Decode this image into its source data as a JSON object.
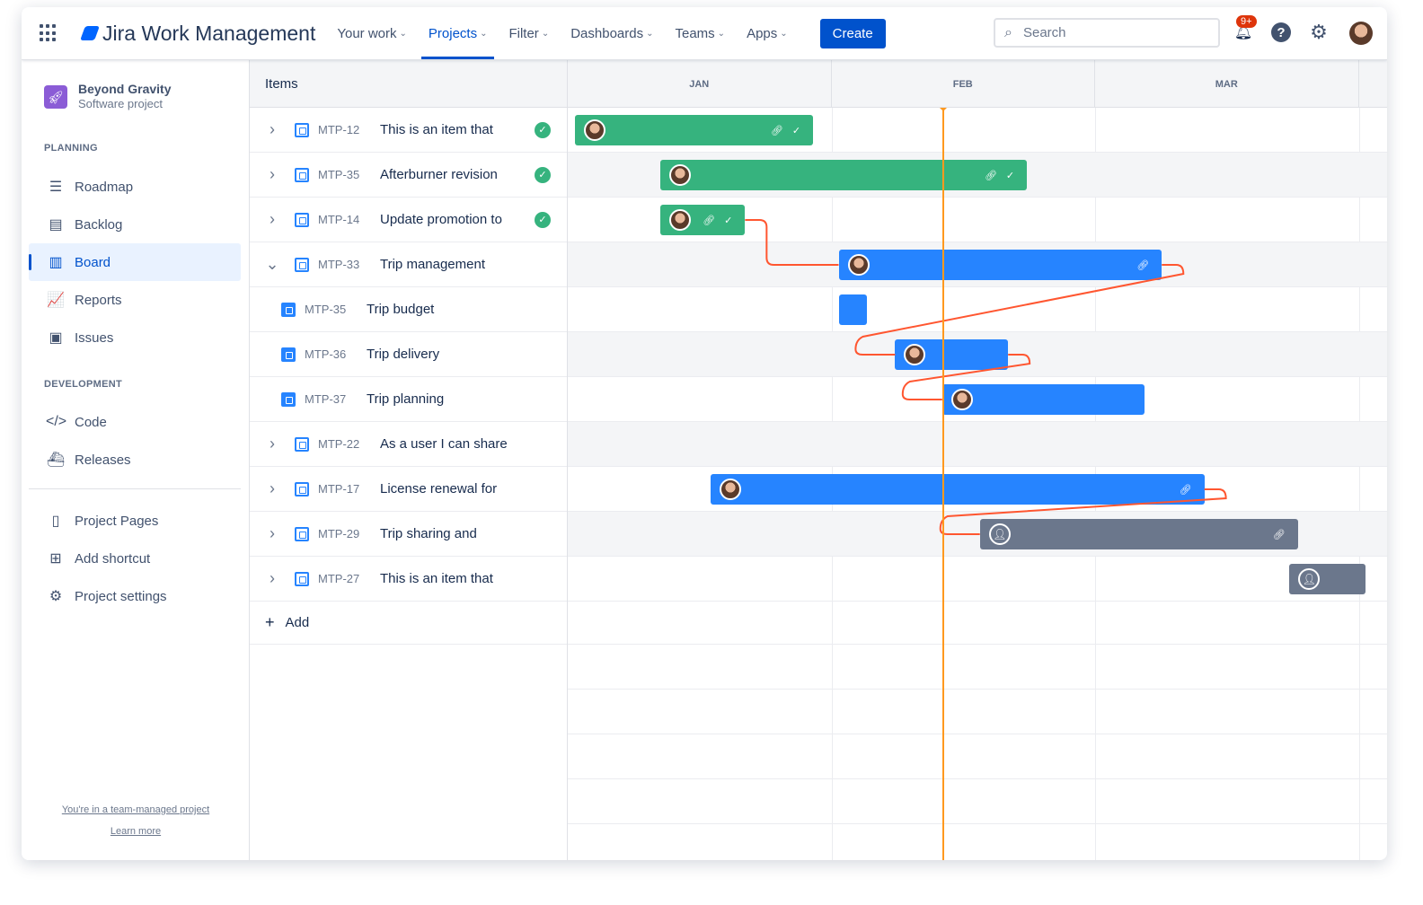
{
  "header": {
    "app_name": "Jira Work Management",
    "nav": [
      {
        "label": "Your work"
      },
      {
        "label": "Projects",
        "active": true
      },
      {
        "label": "Filter"
      },
      {
        "label": "Dashboards"
      },
      {
        "label": "Teams"
      },
      {
        "label": "Apps"
      }
    ],
    "create_label": "Create",
    "search_placeholder": "Search",
    "notification_count": "9+"
  },
  "sidebar": {
    "project_name": "Beyond Gravity",
    "project_type": "Software project",
    "planning_label": "PLANNING",
    "planning": [
      {
        "label": "Roadmap",
        "icon": "roadmap-icon",
        "glyph": "☰"
      },
      {
        "label": "Backlog",
        "icon": "backlog-icon",
        "glyph": "▤"
      },
      {
        "label": "Board",
        "icon": "board-icon",
        "glyph": "▥",
        "active": true
      },
      {
        "label": "Reports",
        "icon": "reports-icon",
        "glyph": "📈"
      },
      {
        "label": "Issues",
        "icon": "issues-icon",
        "glyph": "▣"
      }
    ],
    "development_label": "DEVELOPMENT",
    "development": [
      {
        "label": "Code",
        "icon": "code-icon",
        "glyph": "</>"
      },
      {
        "label": "Releases",
        "icon": "releases-icon",
        "glyph": "⛴"
      }
    ],
    "other": [
      {
        "label": "Project Pages",
        "icon": "pages-icon",
        "glyph": "▯"
      },
      {
        "label": "Add shortcut",
        "icon": "add-shortcut-icon",
        "glyph": "⊞"
      },
      {
        "label": "Project settings",
        "icon": "settings-icon",
        "glyph": "⚙"
      }
    ],
    "footer_text": "You're in a team-managed project",
    "learn_more": "Learn more"
  },
  "items_header": "Items",
  "months": [
    "JAN",
    "FEB",
    "MAR"
  ],
  "today": "Feb 12",
  "colors": {
    "done": "#36B37E",
    "in_progress": "#2684FF",
    "todo": "#6B778C",
    "dependency": "#FF5630",
    "today": "#FF991F"
  },
  "items": [
    {
      "key": "MTP-12",
      "title": "This is an item that",
      "done": true,
      "expand": "collapsed",
      "start": [
        1,
        1
      ],
      "end": [
        1,
        29
      ],
      "status": "done",
      "icons": [
        "link",
        "check"
      ]
    },
    {
      "key": "MTP-35",
      "title": "Afterburner revision",
      "done": true,
      "expand": "collapsed",
      "start": [
        1,
        11
      ],
      "end": [
        2,
        21
      ],
      "status": "done",
      "icons": [
        "link",
        "check"
      ]
    },
    {
      "key": "MTP-14",
      "title": "Update promotion to",
      "done": true,
      "expand": "collapsed",
      "start": [
        1,
        11
      ],
      "end": [
        1,
        21
      ],
      "status": "done",
      "icons": [
        "link",
        "check"
      ]
    },
    {
      "key": "MTP-33",
      "title": "Trip management",
      "expand": "expanded",
      "start": [
        2,
        1
      ],
      "end": [
        3,
        8
      ],
      "status": "in_progress",
      "icons": [
        "link"
      ]
    },
    {
      "key": "MTP-35",
      "title": "Trip budget",
      "child": true,
      "start": [
        2,
        1
      ],
      "end": [
        2,
        4
      ],
      "status": "in_progress",
      "noavatar": true,
      "icons": []
    },
    {
      "key": "MTP-36",
      "title": "Trip delivery",
      "child": true,
      "start": [
        2,
        7
      ],
      "end": [
        2,
        19
      ],
      "status": "in_progress",
      "icons": []
    },
    {
      "key": "MTP-37",
      "title": "Trip planning",
      "child": true,
      "start": [
        2,
        12
      ],
      "end": [
        3,
        6
      ],
      "status": "in_progress",
      "icons": []
    },
    {
      "key": "MTP-22",
      "title": "As a user I can share",
      "expand": "collapsed"
    },
    {
      "key": "MTP-17",
      "title": "License renewal for",
      "expand": "collapsed",
      "start": [
        1,
        17
      ],
      "end": [
        3,
        13
      ],
      "status": "in_progress",
      "icons": [
        "link"
      ]
    },
    {
      "key": "MTP-29",
      "title": "Trip sharing and",
      "expand": "collapsed",
      "start": [
        2,
        16
      ],
      "end": [
        3,
        24
      ],
      "status": "todo",
      "anon": true,
      "icons": [
        "link"
      ]
    },
    {
      "key": "MTP-27",
      "title": "This is an item that",
      "expand": "collapsed",
      "start": [
        3,
        23
      ],
      "end": [
        4,
        1
      ],
      "status": "todo",
      "anon": true,
      "icons": []
    }
  ],
  "dependencies": [
    [
      2,
      3
    ],
    [
      3,
      5
    ],
    [
      5,
      6
    ],
    [
      8,
      9
    ]
  ],
  "add_label": "Add"
}
